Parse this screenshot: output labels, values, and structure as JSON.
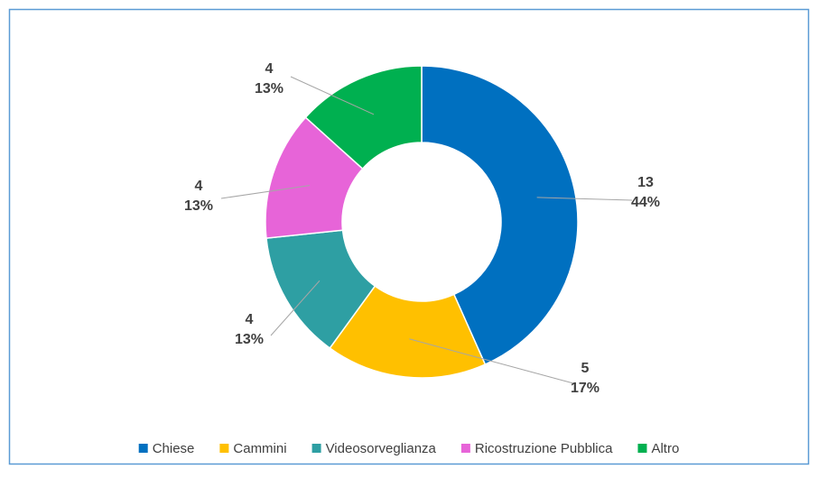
{
  "chart_data": {
    "type": "donut",
    "categories": [
      "Chiese",
      "Cammini",
      "Videosorveglianza",
      "Ricostruzione Pubblica",
      "Altro"
    ],
    "values": [
      13,
      5,
      4,
      4,
      4
    ],
    "percentages": [
      44,
      17,
      13,
      13,
      13
    ],
    "percentage_labels": [
      "44%",
      "17%",
      "13%",
      "13%",
      "13%"
    ],
    "colors": [
      "#0070c0",
      "#ffc000",
      "#2e9fa3",
      "#e764d8",
      "#00b050"
    ],
    "legend": "bottom"
  }
}
